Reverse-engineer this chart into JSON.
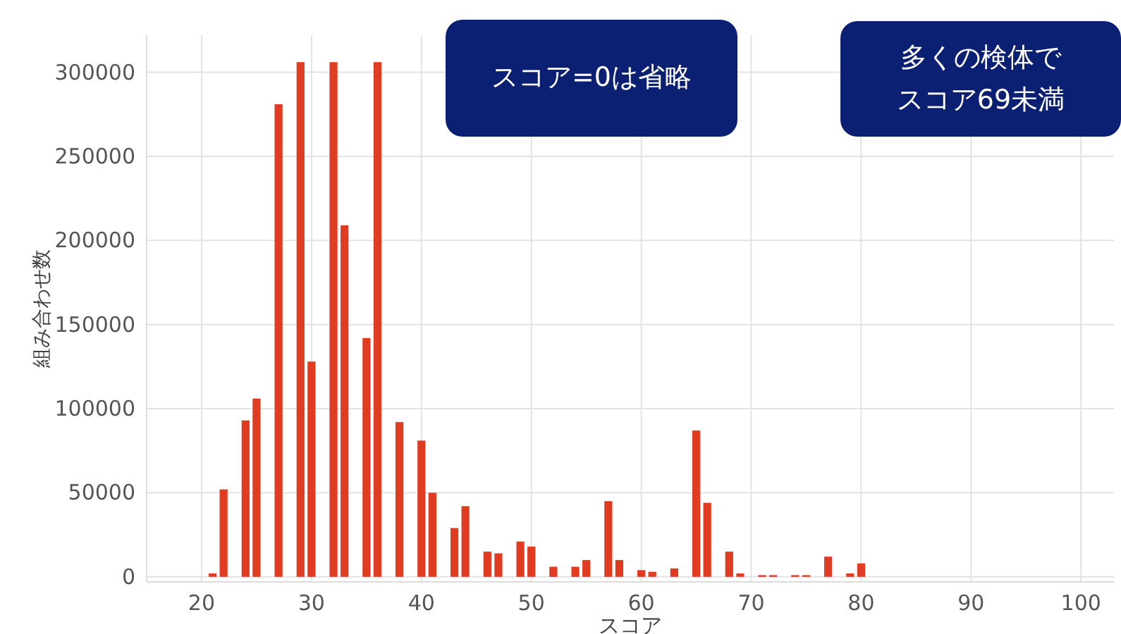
{
  "chart_data": {
    "type": "bar",
    "xlabel": "スコア",
    "ylabel": "組み合わせ数",
    "x": [
      21,
      22,
      24,
      25,
      27,
      29,
      30,
      32,
      33,
      35,
      36,
      38,
      40,
      41,
      43,
      44,
      46,
      47,
      49,
      50,
      52,
      54,
      55,
      57,
      58,
      60,
      61,
      63,
      65,
      66,
      68,
      69,
      71,
      72,
      74,
      75,
      77,
      79,
      80
    ],
    "values": [
      2000,
      52000,
      93000,
      106000,
      281000,
      306000,
      128000,
      306000,
      209000,
      142000,
      306000,
      92000,
      81000,
      50000,
      29000,
      42000,
      15000,
      14000,
      21000,
      18000,
      6000,
      6000,
      10000,
      45000,
      10000,
      4000,
      3000,
      5000,
      87000,
      44000,
      15000,
      2000,
      1000,
      1000,
      1000,
      1000,
      12000,
      2000,
      8000
    ],
    "color": "#e03c22",
    "xlim": [
      15,
      103
    ],
    "ylim": [
      -3000,
      322000
    ],
    "xticks": [
      20,
      30,
      40,
      50,
      60,
      70,
      80,
      90,
      100
    ],
    "yticks": [
      0,
      50000,
      100000,
      150000,
      200000,
      250000,
      300000
    ],
    "grid": true,
    "annotations": [
      "スコア=0は省略",
      "多くの検体でスコア69未満"
    ]
  }
}
